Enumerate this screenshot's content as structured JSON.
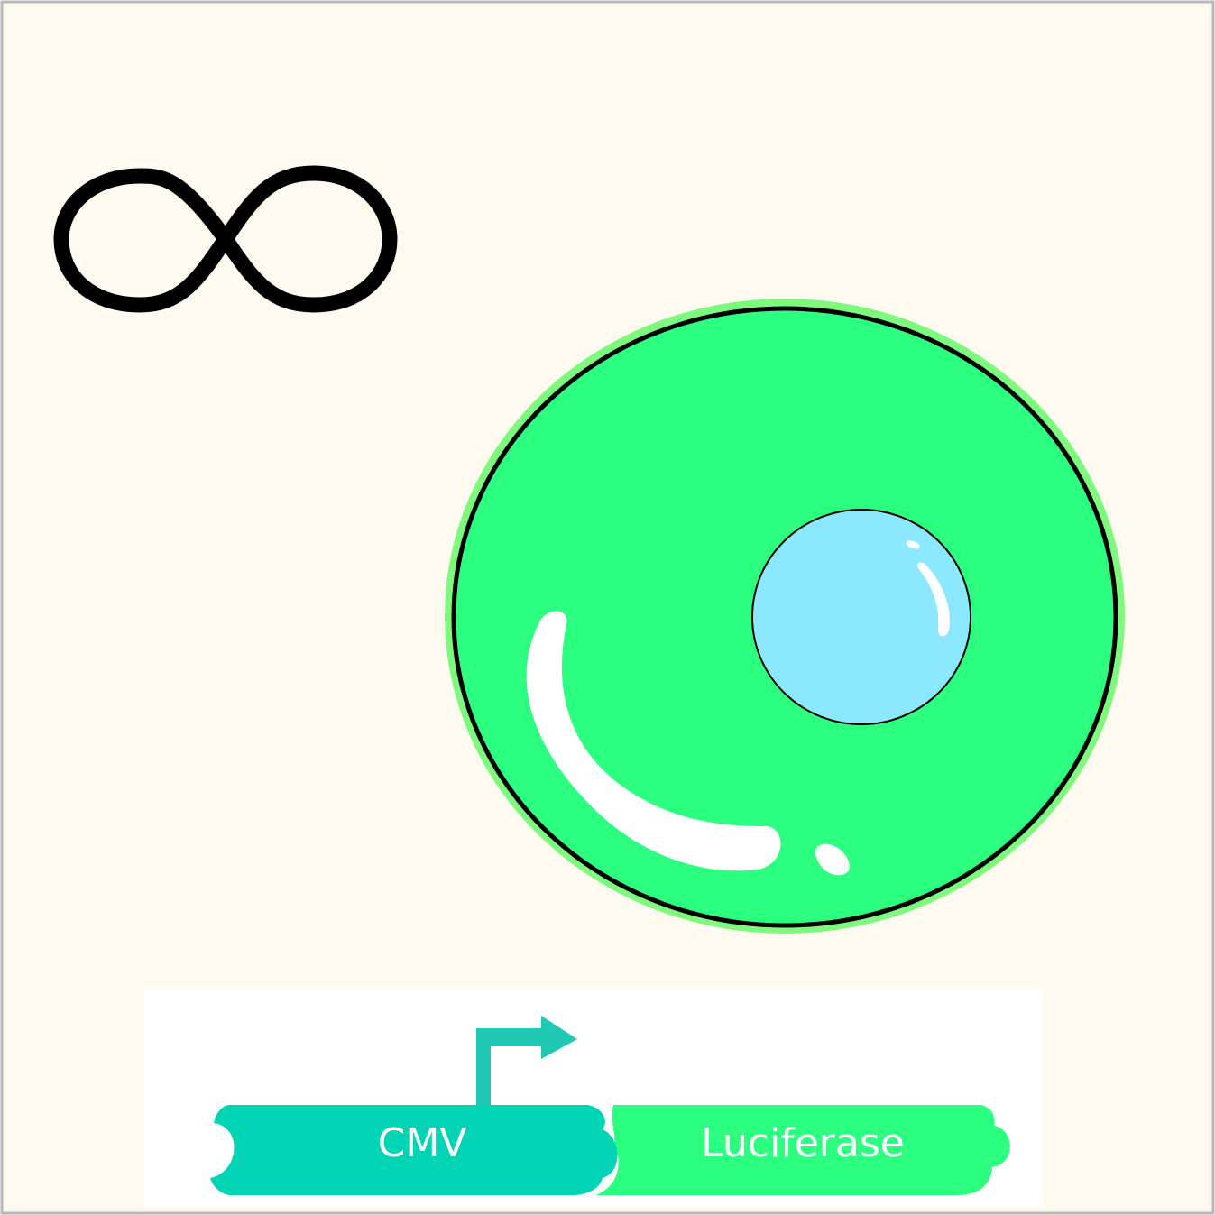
{
  "colors": {
    "background": "#fffaf0",
    "frame": "#b8b8b8",
    "cell_fill": "#2cff7f",
    "cell_halo": "#7dfa7d",
    "cell_outline": "#000000",
    "nucleus_fill": "#8ce8fe",
    "highlight": "#ffffff",
    "construct_panel": "#ffffff",
    "promoter": "#00d4b4",
    "reporter": "#2cff7f",
    "promoter_arrow": "#20c9b3",
    "infinity_stroke": "#000000"
  },
  "icons": {
    "infinity": "infinity-icon",
    "promoter_arrow": "bent-arrow-icon"
  },
  "construct": {
    "promoter_label": "CMV",
    "gene_label": "Luciferase"
  }
}
